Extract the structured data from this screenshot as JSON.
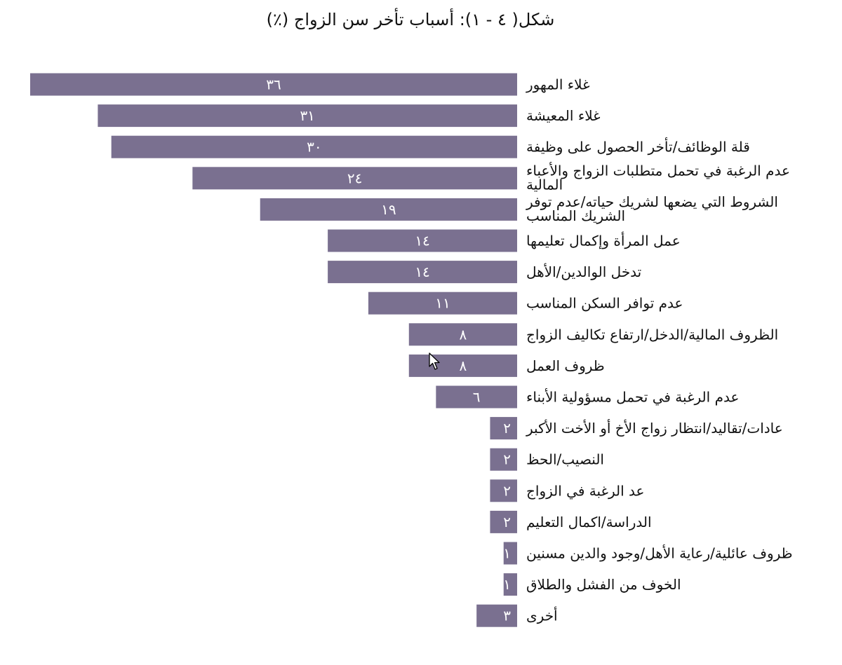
{
  "chart_data": {
    "type": "bar",
    "orientation": "horizontal",
    "title": "شكل( ٤ - ١): أسباب تأخر سن الزواج (٪)",
    "categories": [
      "غلاء المهور",
      "غلاء المعيشة",
      "قلة الوظائف/تأخر الحصول على وظيفة",
      "عدم الرغبة في تحمل متطلبات الزواج والأعباء المالية",
      "الشروط التي يضعها لشريك حياته/عدم توفر الشريك المناسب",
      "عمل المرأة وإكمال تعليمها",
      "تدخل الوالدين/الأهل",
      "عدم توافر السكن المناسب",
      "الظروف المالية/الدخل/ارتفاع تكاليف الزواج",
      "ظروف العمل",
      "عدم الرغبة في تحمل مسؤولية الأبناء",
      "عادات/تقاليد/انتظار زواج الأخ أو الأخت الأكبر",
      "النصيب/الحظ",
      "عد الرغبة في الزواج",
      "الدراسة/اكمال التعليم",
      "ظروف عائلية/رعاية الأهل/وجود والدين مسنين",
      "الخوف من الفشل والطلاق",
      "أخرى"
    ],
    "values": [
      36,
      31,
      30,
      24,
      19,
      14,
      14,
      11,
      8,
      8,
      6,
      2,
      2,
      2,
      2,
      1,
      1,
      3
    ],
    "value_labels": [
      "٣٦",
      "٣١",
      "٣٠",
      "٢٤",
      "١٩",
      "١٤",
      "١٤",
      "١١",
      "٨",
      "٨",
      "٦",
      "٢",
      "٢",
      "٢",
      "٢",
      "١",
      "١",
      "٣"
    ],
    "xlim": [
      0,
      36
    ],
    "xlabel": "",
    "ylabel": "",
    "grid": false,
    "legend": "none",
    "bar_color": "#7a7090",
    "label_color": "#ffffff"
  }
}
